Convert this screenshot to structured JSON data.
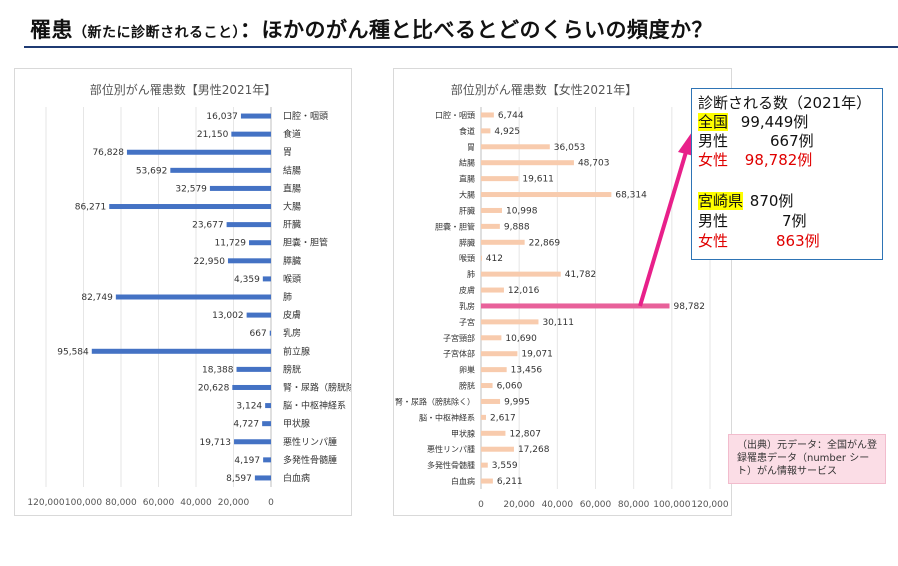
{
  "page": {
    "title_main": "罹患",
    "title_paren": "（新たに診断されること）",
    "title_rest": "：ほかのがん種と比べるとどのくらいの頻度か？"
  },
  "info": {
    "heading": "診断される数（2021年）",
    "national_label": "全国",
    "national_value": "99,449例",
    "national_male_label": "男性",
    "national_male_value": "667例",
    "national_female_label": "女性",
    "national_female_value": "98,782例",
    "pref_label": "宮崎県",
    "pref_value": "870例",
    "pref_male_label": "男性",
    "pref_male_value": "7例",
    "pref_female_label": "女性",
    "pref_female_value": "863例"
  },
  "source": {
    "text": "（出典）元データ：全国がん登録罹患データ（number シート）がん情報サービス"
  },
  "colors": {
    "male_bar": "#4472c4",
    "female_bar": "#f8cbad",
    "female_highlight": "#e8619a",
    "arrow": "#e8208a",
    "title_underline": "#1f3b73"
  },
  "chart_data": [
    {
      "type": "bar",
      "orientation": "horizontal",
      "title": "部位別がん罹患数【男性2021年】",
      "categories": [
        "口腔・咽頭",
        "食道",
        "胃",
        "結腸",
        "直腸",
        "大腸",
        "肝臓",
        "胆嚢・胆管",
        "膵臓",
        "喉頭",
        "肺",
        "皮膚",
        "乳房",
        "前立腺",
        "膀胱",
        "腎・尿路（膀胱除く）",
        "脳・中枢神経系",
        "甲状腺",
        "悪性リンパ腫",
        "多発性骨髄腫",
        "白血病"
      ],
      "values": [
        16037,
        21150,
        76828,
        53692,
        32579,
        86271,
        23677,
        11729,
        22950,
        4359,
        82749,
        13002,
        667,
        95584,
        18388,
        20628,
        3124,
        4727,
        19713,
        4197,
        8597
      ],
      "value_labels": [
        "16,037",
        "21,150",
        "76,828",
        "53,692",
        "32,579",
        "86,271",
        "23,677",
        "11,729",
        "22,950",
        "4,359",
        "82,749",
        "13,002",
        "667",
        "95,584",
        "18,388",
        "20,628",
        "3,124",
        "4,727",
        "19,713",
        "4,197",
        "8,597"
      ],
      "xlim": [
        0,
        120000
      ],
      "x_reversed": true,
      "ticks": [
        120000,
        100000,
        80000,
        60000,
        40000,
        20000,
        0
      ],
      "tick_labels": [
        "120,000",
        "100,000",
        "80,000",
        "60,000",
        "40,000",
        "20,000",
        "0"
      ],
      "grid": true
    },
    {
      "type": "bar",
      "orientation": "horizontal",
      "title": "部位別がん罹患数【女性2021年】",
      "categories": [
        "口腔・咽頭",
        "食道",
        "胃",
        "結腸",
        "直腸",
        "大腸",
        "肝臓",
        "胆嚢・胆管",
        "膵臓",
        "喉頭",
        "肺",
        "皮膚",
        "乳房",
        "子宮",
        "子宮頸部",
        "子宮体部",
        "卵巣",
        "膀胱",
        "腎・尿路（膀胱除く）",
        "脳・中枢神経系",
        "甲状腺",
        "悪性リンパ腫",
        "多発性骨髄腫",
        "白血病"
      ],
      "values": [
        6744,
        4925,
        36053,
        48703,
        19611,
        68314,
        10998,
        9888,
        22869,
        412,
        41782,
        12016,
        98782,
        30111,
        10690,
        19071,
        13456,
        6060,
        9995,
        2617,
        12807,
        17268,
        3559,
        6211
      ],
      "value_labels": [
        "6,744",
        "4,925",
        "36,053",
        "48,703",
        "19,611",
        "68,314",
        "10,998",
        "9,888",
        "22,869",
        "412",
        "41,782",
        "12,016",
        "98,782",
        "30,111",
        "10,690",
        "19,071",
        "13,456",
        "6,060",
        "9,995",
        "2,617",
        "12,807",
        "17,268",
        "3,559",
        "6,211"
      ],
      "highlight_category": "乳房",
      "xlim": [
        0,
        120000
      ],
      "x_reversed": false,
      "ticks": [
        0,
        20000,
        40000,
        60000,
        80000,
        100000,
        120000
      ],
      "tick_labels": [
        "0",
        "20,000",
        "40,000",
        "60,000",
        "80,000",
        "100,000",
        "120,000"
      ],
      "grid": true
    }
  ]
}
